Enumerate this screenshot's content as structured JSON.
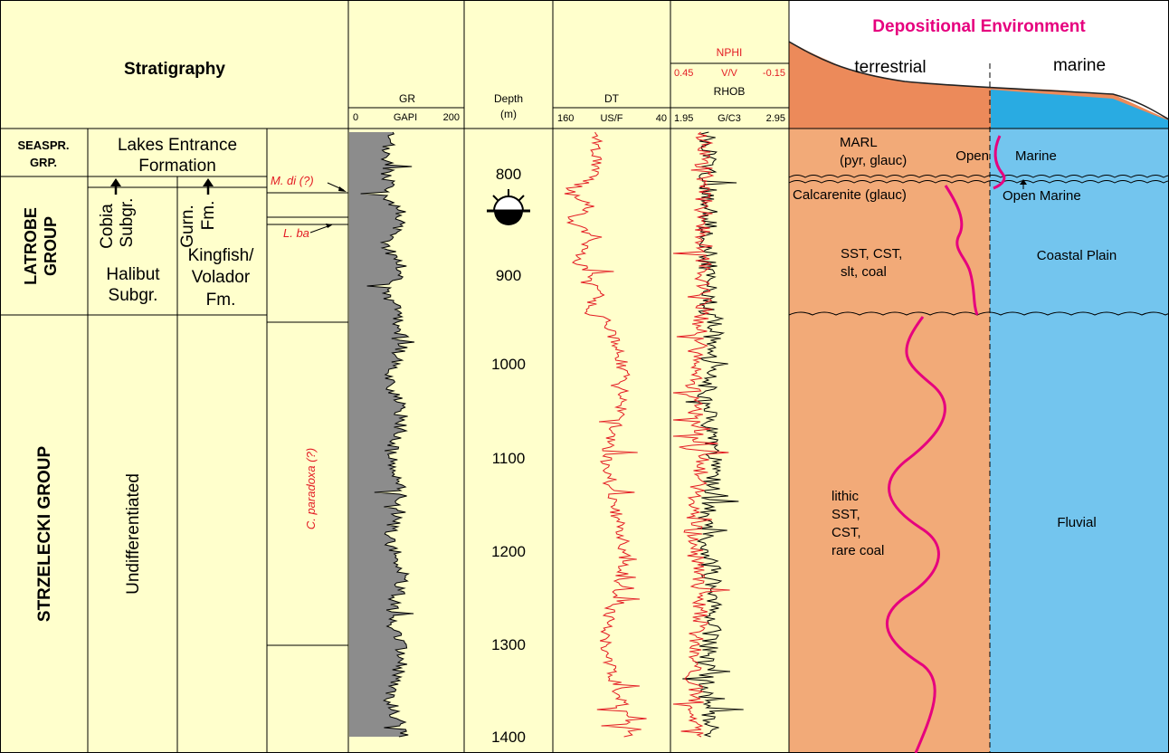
{
  "header": {
    "stratigraphy": "Stratigraphy",
    "gr_title": "GR",
    "gr_scale": [
      "0",
      "GAPI",
      "200"
    ],
    "depth_title": "Depth",
    "depth_unit": "(m)",
    "dt_title": "DT",
    "dt_scale": [
      "160",
      "US/F",
      "40"
    ],
    "nphi_title": "NPHI",
    "nphi_scale": [
      "0.45",
      "V/V",
      "-0.15"
    ],
    "rhob_title": "RHOB",
    "rhob_scale": [
      "1.95",
      "G/C3",
      "2.95"
    ],
    "env_title": "Depositional Environment",
    "env_terrestrial": "terrestrial",
    "env_marine": "marine"
  },
  "groups": {
    "seaspray": [
      "SEASPR.",
      "GRP."
    ],
    "latrobe": [
      "LATROBE",
      "GROUP"
    ],
    "strzelecki": "STRZELECKI GROUP"
  },
  "formations": {
    "lakes_entrance": [
      "Lakes Entrance",
      "Formation"
    ],
    "cobia": [
      "Cobia",
      "Subgr."
    ],
    "gurnard": [
      "Gurn.",
      "Fm."
    ],
    "halibut": [
      "Halibut",
      "Subgr."
    ],
    "kingfish": [
      "Kingfish/",
      "Volador",
      "Fm."
    ],
    "undifferentiated": "Undifferentiated"
  },
  "biozones": {
    "mdi": "M. di (?)",
    "lba": "L. ba",
    "cparadoxa": "C. paradoxa (?)"
  },
  "depth_ticks": [
    "800",
    "900",
    "1000",
    "1100",
    "1200",
    "1300",
    "1400"
  ],
  "lithology": {
    "marl": [
      "MARL",
      "(pyr, glauc)"
    ],
    "calcarenite": "Calcarenite (glauc)",
    "sst_cst": [
      "SST, CST,",
      "slt, coal"
    ],
    "lithic": [
      "lithic",
      "SST,",
      "CST,",
      "rare coal"
    ]
  },
  "environment": {
    "open_marine_top_left": "Open",
    "open_marine_top_right": "Marine",
    "open_marine_lower": "Open Marine",
    "coastal_plain": "Coastal Plain",
    "fluvial": "Fluvial"
  },
  "colors": {
    "panel_bg": "#ffffcc",
    "terrestrial_fill": "#f2aa78",
    "terrestrial_header": "#ec8a5a",
    "marine_fill": "#73c5ee",
    "marine_header": "#29abe2",
    "accent_magenta": "#e6007e",
    "log_red": "#e31b23",
    "gr_fill": "#8c8c8c"
  }
}
